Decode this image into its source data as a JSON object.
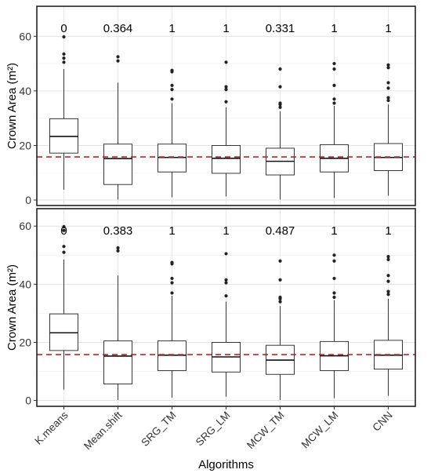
{
  "figure": {
    "xlabel": "Algorithms",
    "categories": [
      "K.means",
      "Mean.shift",
      "SRG_TM",
      "SRG_LM",
      "MCW_TM",
      "MCW_LM",
      "CNN"
    ]
  },
  "chart_data": [
    {
      "type": "box",
      "panel": "top",
      "ylabel": "Crown Area (m²)",
      "ylim": [
        -2,
        71
      ],
      "yticks": [
        0,
        20,
        40,
        60
      ],
      "reference_line": {
        "y": 15.8,
        "style": "dashed",
        "color": "#cc1f1f"
      },
      "grid": true,
      "categories": [
        "K.means",
        "Mean.shift",
        "SRG_TM",
        "SRG_LM",
        "MCW_TM",
        "MCW_LM",
        "CNN"
      ],
      "annotations": [
        "0",
        "0.364",
        "1",
        "1",
        "0.331",
        "1",
        "1"
      ],
      "boxes": [
        {
          "min": 3.8,
          "q1": 17.2,
          "median": 23.3,
          "q3": 29.8,
          "max": 48.0,
          "outliers": [
            50.5,
            52.0,
            53.5,
            59.8
          ]
        },
        {
          "min": 0.2,
          "q1": 5.7,
          "median": 15.2,
          "q3": 20.5,
          "max": 43.0,
          "outliers": [
            51.0,
            52.5
          ]
        },
        {
          "min": 1.0,
          "q1": 10.3,
          "median": 15.6,
          "q3": 20.5,
          "max": 35.5,
          "outliers": [
            37.0,
            40.5,
            42.0,
            47.0,
            47.5
          ]
        },
        {
          "min": 1.3,
          "q1": 9.8,
          "median": 15.3,
          "q3": 20.0,
          "max": 34.0,
          "outliers": [
            36.0,
            40.5,
            41.5,
            50.5
          ]
        },
        {
          "min": 0.2,
          "q1": 9.2,
          "median": 14.2,
          "q3": 19.0,
          "max": 32.5,
          "outliers": [
            34.0,
            35.0,
            35.5,
            41.5,
            48.0
          ]
        },
        {
          "min": 0.8,
          "q1": 10.3,
          "median": 15.3,
          "q3": 20.3,
          "max": 34.5,
          "outliers": [
            35.5,
            37.0,
            42.0,
            48.0,
            50.0
          ]
        },
        {
          "min": 1.6,
          "q1": 10.8,
          "median": 15.6,
          "q3": 20.7,
          "max": 35.0,
          "outliers": [
            36.5,
            37.5,
            41.0,
            43.0,
            48.5,
            49.5
          ]
        }
      ]
    },
    {
      "type": "box",
      "panel": "bottom",
      "ylabel": "Crown Area (m²)",
      "ylim": [
        -2,
        66
      ],
      "yticks": [
        0,
        20,
        40,
        60
      ],
      "reference_line": {
        "y": 15.8,
        "style": "dashed",
        "color": "#cc1f1f"
      },
      "grid": true,
      "categories": [
        "K.means",
        "Mean.shift",
        "SRG_TM",
        "SRG_LM",
        "MCW_TM",
        "MCW_LM",
        "CNN"
      ],
      "annotations": [
        "0",
        "0.383",
        "1",
        "1",
        "0.487",
        "1",
        "1"
      ],
      "boxes": [
        {
          "min": 3.8,
          "q1": 17.2,
          "median": 23.3,
          "q3": 29.8,
          "max": 48.5,
          "outliers": [
            51.0,
            53.0,
            58.5,
            59.8
          ]
        },
        {
          "min": 0.2,
          "q1": 5.7,
          "median": 15.3,
          "q3": 20.5,
          "max": 43.0,
          "outliers": [
            51.5,
            52.5
          ]
        },
        {
          "min": 1.0,
          "q1": 10.3,
          "median": 15.6,
          "q3": 20.5,
          "max": 36.0,
          "outliers": [
            37.0,
            40.5,
            42.0,
            47.0,
            47.5
          ]
        },
        {
          "min": 1.3,
          "q1": 9.8,
          "median": 15.0,
          "q3": 20.0,
          "max": 34.0,
          "outliers": [
            36.0,
            40.5,
            41.5,
            50.5
          ]
        },
        {
          "min": 0.2,
          "q1": 9.0,
          "median": 13.9,
          "q3": 19.0,
          "max": 32.5,
          "outliers": [
            34.0,
            35.0,
            35.5,
            41.5,
            48.0
          ]
        },
        {
          "min": 0.8,
          "q1": 10.3,
          "median": 15.4,
          "q3": 20.3,
          "max": 34.5,
          "outliers": [
            35.5,
            37.0,
            42.0,
            48.0,
            50.0
          ]
        },
        {
          "min": 1.6,
          "q1": 10.8,
          "median": 15.6,
          "q3": 20.7,
          "max": 35.0,
          "outliers": [
            36.5,
            37.5,
            41.0,
            43.0,
            48.5,
            49.5
          ]
        }
      ]
    }
  ]
}
